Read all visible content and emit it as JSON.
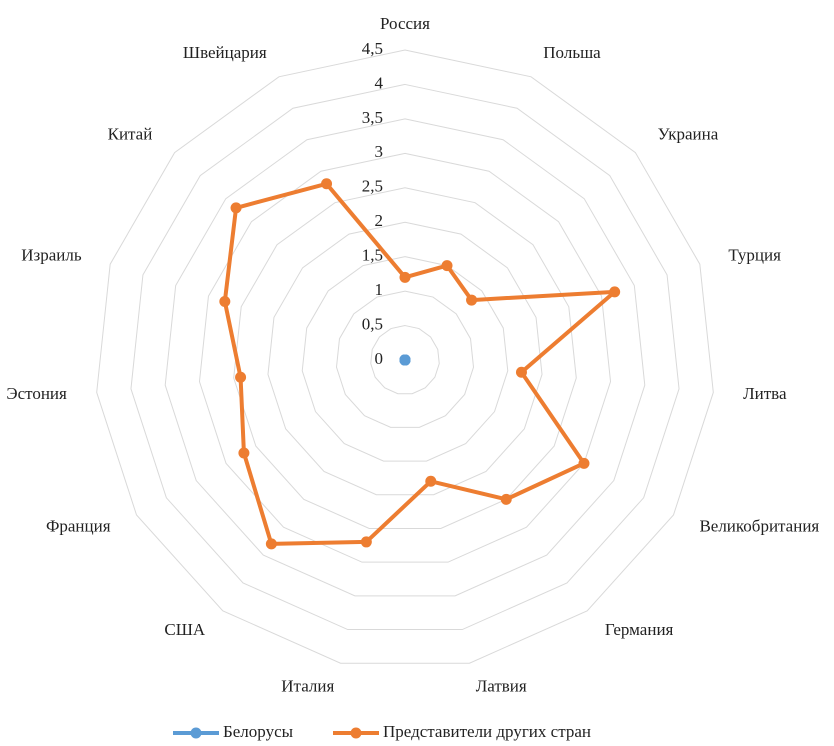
{
  "chart_data": {
    "type": "radar",
    "categories": [
      "Россия",
      "Польша",
      "Украина",
      "Турция",
      "Литва",
      "Великобритания",
      "Германия",
      "Латвия",
      "Италия",
      "США",
      "Франция",
      "Эстония",
      "Израиль",
      "Китай",
      "Швейцария"
    ],
    "series": [
      {
        "name": "Белорусы",
        "color": "#5b9bd5",
        "values": [
          0,
          0,
          0,
          0,
          0,
          0,
          0,
          0,
          0,
          0,
          0,
          0,
          0,
          0,
          0
        ]
      },
      {
        "name": "Представители других стран",
        "color": "#ed7d31",
        "values": [
          1.2,
          1.5,
          1.3,
          3.2,
          1.7,
          3.0,
          2.5,
          1.8,
          2.7,
          3.3,
          2.7,
          2.4,
          2.75,
          3.3,
          2.8
        ]
      }
    ],
    "ylim": [
      0,
      4.5
    ],
    "yticks": [
      0,
      {
        "value": 0.5,
        "label": "0,5"
      },
      1,
      {
        "value": 1.5,
        "label": "1,5"
      },
      2,
      {
        "value": 2.5,
        "label": "2,5"
      },
      3,
      {
        "value": 3.5,
        "label": "3,5"
      },
      4,
      {
        "value": 4.5,
        "label": "4,5"
      }
    ],
    "grid": true,
    "legend": "bottom"
  }
}
